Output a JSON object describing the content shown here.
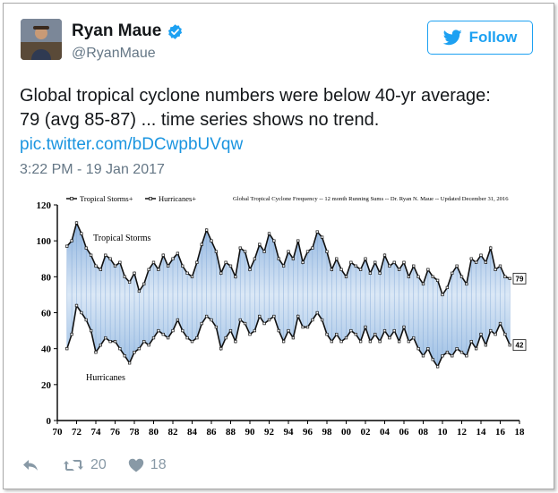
{
  "tweet": {
    "author": {
      "name": "Ryan Maue",
      "handle": "@RyanMaue",
      "verified": true
    },
    "follow_label": "Follow",
    "text_line1": "Global tropical cyclone numbers were below 40-yr average:",
    "text_line2": "79 (avg 85-87) ... time series shows no trend.",
    "link": "pic.twitter.com/bDCwpbUVqw",
    "timestamp": "3:22 PM - 19 Jan 2017",
    "retweets": "20",
    "likes": "18"
  },
  "colors": {
    "twitter_blue": "#1da1f2",
    "link_blue": "#1b95e0",
    "fill_blue": "#a9c6e8"
  },
  "icons": [
    "verified-icon",
    "twitter-bird-icon",
    "reply-icon",
    "retweet-icon",
    "heart-icon"
  ],
  "chart_data": {
    "type": "line",
    "title": "Global Tropical Cyclone Frequency -- 12 month Running Sums -- Dr. Ryan N. Maue -- Updated December 31, 2016",
    "legend": [
      "Tropical Storms+",
      "Hurricanes+"
    ],
    "legend_placement": "top-left",
    "xlabel": "",
    "ylabel": "",
    "xlim": [
      1970,
      2018
    ],
    "ylim": [
      0,
      120
    ],
    "x_ticks": [
      "70",
      "72",
      "74",
      "76",
      "78",
      "80",
      "82",
      "84",
      "86",
      "88",
      "90",
      "92",
      "94",
      "96",
      "98",
      "00",
      "02",
      "04",
      "06",
      "08",
      "10",
      "12",
      "14",
      "16",
      "18"
    ],
    "y_ticks": [
      0,
      20,
      40,
      60,
      80,
      100,
      120
    ],
    "grid": false,
    "fill_between_series": true,
    "annotations": [
      "Tropical Storms",
      "Hurricanes"
    ],
    "end_labels": [
      "79",
      "42"
    ],
    "series": [
      {
        "name": "Tropical Storms+",
        "x": [
          1971.0,
          1971.5,
          1972.0,
          1972.5,
          1973.0,
          1973.5,
          1974.0,
          1974.5,
          1975.0,
          1975.5,
          1976.0,
          1976.5,
          1977.0,
          1977.5,
          1978.0,
          1978.5,
          1979.0,
          1979.5,
          1980.0,
          1980.5,
          1981.0,
          1981.5,
          1982.0,
          1982.5,
          1983.0,
          1983.5,
          1984.0,
          1984.5,
          1985.0,
          1985.5,
          1986.0,
          1986.5,
          1987.0,
          1987.5,
          1988.0,
          1988.5,
          1989.0,
          1989.5,
          1990.0,
          1990.5,
          1991.0,
          1991.5,
          1992.0,
          1992.5,
          1993.0,
          1993.5,
          1994.0,
          1994.5,
          1995.0,
          1995.5,
          1996.0,
          1996.5,
          1997.0,
          1997.5,
          1998.0,
          1998.5,
          1999.0,
          1999.5,
          2000.0,
          2000.5,
          2001.0,
          2001.5,
          2002.0,
          2002.5,
          2003.0,
          2003.5,
          2004.0,
          2004.5,
          2005.0,
          2005.5,
          2006.0,
          2006.5,
          2007.0,
          2007.5,
          2008.0,
          2008.5,
          2009.0,
          2009.5,
          2010.0,
          2010.5,
          2011.0,
          2011.5,
          2012.0,
          2012.5,
          2013.0,
          2013.5,
          2014.0,
          2014.5,
          2015.0,
          2015.5,
          2016.0,
          2016.5,
          2017.0
        ],
        "y": [
          97,
          100,
          110,
          104,
          96,
          92,
          86,
          84,
          92,
          90,
          86,
          88,
          80,
          77,
          82,
          72,
          76,
          84,
          88,
          84,
          92,
          86,
          90,
          93,
          86,
          82,
          80,
          88,
          98,
          106,
          100,
          94,
          82,
          88,
          86,
          80,
          96,
          94,
          84,
          90,
          98,
          94,
          104,
          100,
          90,
          86,
          94,
          90,
          100,
          88,
          94,
          96,
          105,
          102,
          94,
          84,
          90,
          84,
          80,
          88,
          86,
          84,
          90,
          82,
          88,
          82,
          92,
          86,
          88,
          84,
          88,
          80,
          86,
          80,
          76,
          84,
          80,
          78,
          70,
          74,
          82,
          86,
          80,
          76,
          90,
          88,
          92,
          88,
          96,
          84,
          86,
          80,
          79
        ]
      },
      {
        "name": "Hurricanes+",
        "x": [
          1971.0,
          1971.5,
          1972.0,
          1972.5,
          1973.0,
          1973.5,
          1974.0,
          1974.5,
          1975.0,
          1975.5,
          1976.0,
          1976.5,
          1977.0,
          1977.5,
          1978.0,
          1978.5,
          1979.0,
          1979.5,
          1980.0,
          1980.5,
          1981.0,
          1981.5,
          1982.0,
          1982.5,
          1983.0,
          1983.5,
          1984.0,
          1984.5,
          1985.0,
          1985.5,
          1986.0,
          1986.5,
          1987.0,
          1987.5,
          1988.0,
          1988.5,
          1989.0,
          1989.5,
          1990.0,
          1990.5,
          1991.0,
          1991.5,
          1992.0,
          1992.5,
          1993.0,
          1993.5,
          1994.0,
          1994.5,
          1995.0,
          1995.5,
          1996.0,
          1996.5,
          1997.0,
          1997.5,
          1998.0,
          1998.5,
          1999.0,
          1999.5,
          2000.0,
          2000.5,
          2001.0,
          2001.5,
          2002.0,
          2002.5,
          2003.0,
          2003.5,
          2004.0,
          2004.5,
          2005.0,
          2005.5,
          2006.0,
          2006.5,
          2007.0,
          2007.5,
          2008.0,
          2008.5,
          2009.0,
          2009.5,
          2010.0,
          2010.5,
          2011.0,
          2011.5,
          2012.0,
          2012.5,
          2013.0,
          2013.5,
          2014.0,
          2014.5,
          2015.0,
          2015.5,
          2016.0,
          2016.5,
          2017.0
        ],
        "y": [
          40,
          48,
          64,
          60,
          56,
          50,
          38,
          42,
          46,
          44,
          44,
          40,
          36,
          32,
          38,
          40,
          44,
          42,
          46,
          50,
          48,
          46,
          50,
          56,
          50,
          46,
          44,
          46,
          54,
          58,
          56,
          52,
          40,
          46,
          50,
          44,
          56,
          54,
          48,
          50,
          58,
          54,
          56,
          58,
          50,
          44,
          50,
          46,
          58,
          52,
          52,
          56,
          60,
          56,
          48,
          44,
          48,
          44,
          46,
          50,
          48,
          44,
          52,
          44,
          48,
          44,
          50,
          46,
          50,
          44,
          52,
          44,
          46,
          40,
          36,
          40,
          34,
          30,
          36,
          38,
          36,
          40,
          38,
          36,
          44,
          40,
          48,
          42,
          50,
          48,
          54,
          48,
          42
        ]
      }
    ]
  }
}
